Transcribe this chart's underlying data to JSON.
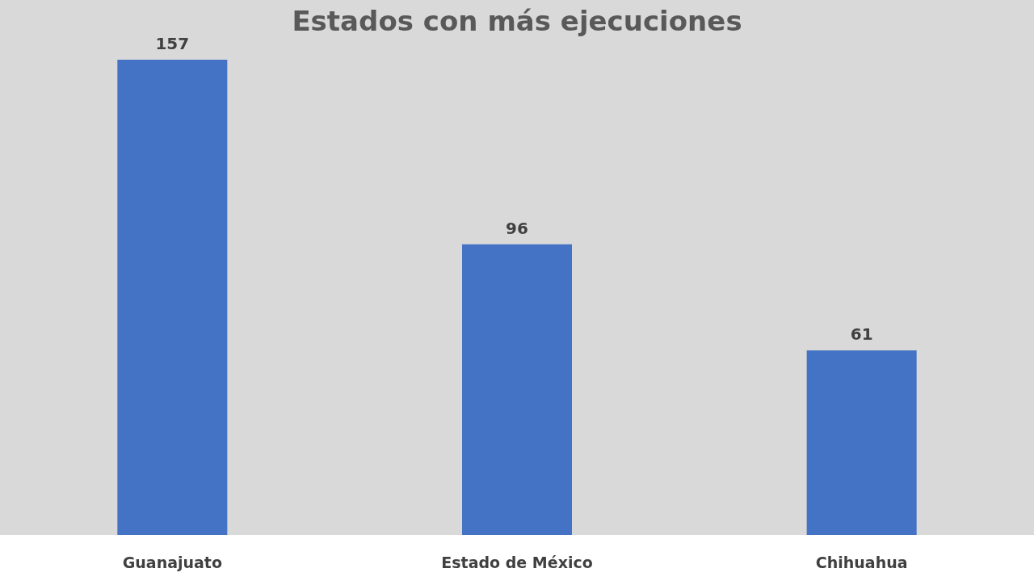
{
  "chart_data": {
    "type": "bar",
    "title": "Estados con más ejecuciones",
    "categories": [
      "Guanajuato",
      "Estado de México",
      "Chihuahua"
    ],
    "values": [
      157,
      96,
      61
    ],
    "color": "#4472c4",
    "data_labels": true
  }
}
